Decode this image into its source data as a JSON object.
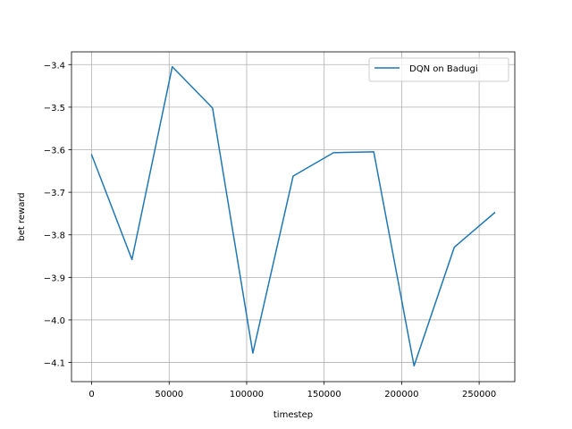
{
  "chart_data": {
    "type": "line",
    "title": "",
    "xlabel": "timestep",
    "ylabel": "bet reward",
    "grid": true,
    "legend_position": "top-right",
    "xlim": [
      -13000,
      273000
    ],
    "ylim": [
      -4.145,
      -3.37
    ],
    "x_ticks": [
      0,
      50000,
      100000,
      150000,
      200000,
      250000
    ],
    "x_tick_labels": [
      "0",
      "50000",
      "100000",
      "150000",
      "200000",
      "250000"
    ],
    "y_ticks": [
      -3.4,
      -3.5,
      -3.6,
      -3.7,
      -3.8,
      -3.9,
      -4.0,
      -4.1
    ],
    "y_tick_labels": [
      "−3.4",
      "−3.5",
      "−3.6",
      "−3.7",
      "−3.8",
      "−3.9",
      "−4.0",
      "−4.1"
    ],
    "series": [
      {
        "name": "DQN on Badugi",
        "color": "#1f77b4",
        "x": [
          0,
          26000,
          52000,
          78000,
          104000,
          130000,
          156000,
          182000,
          208000,
          234000,
          260000
        ],
        "y": [
          -3.612,
          -3.858,
          -3.405,
          -3.502,
          -4.078,
          -3.662,
          -3.607,
          -3.605,
          -4.108,
          -3.829,
          -3.748
        ]
      }
    ]
  }
}
